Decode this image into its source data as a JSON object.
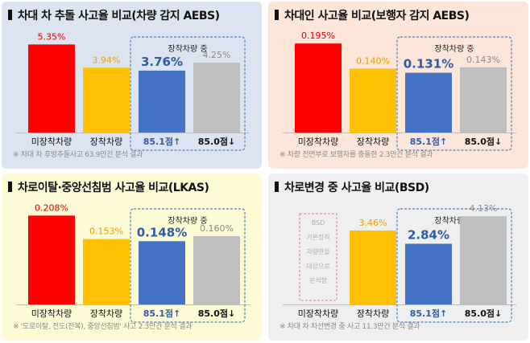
{
  "chart_data": [
    {
      "type": "bar",
      "title": "차대 차 추돌 사고율 비교(차량 감지 AEBS)",
      "categories": [
        "미장착차량",
        "장착차량",
        "85.1점↑",
        "85.0점↓"
      ],
      "values": [
        5.35,
        3.94,
        3.76,
        4.25
      ],
      "value_labels": [
        "5.35%",
        "3.94%",
        "3.76%",
        "4.25%"
      ],
      "group_box_label": "장착차량 중",
      "note": "※ 차대 차 후방추돌사고 63.9만건 분석 결과",
      "colors": [
        "#fe0000",
        "#fec000",
        "#4472c4",
        "#bfbfbf"
      ],
      "label_colors": [
        "#e00000",
        "#e8a000",
        "#2f5aa8",
        "#8a8a8a"
      ],
      "background": "#dde4f1",
      "ylim": [
        0,
        6.1
      ]
    },
    {
      "type": "bar",
      "title": "차대인 사고율 비교(보행자 감지 AEBS)",
      "categories": [
        "미장착차량",
        "장착차량",
        "85.1점↑",
        "85.0점↓"
      ],
      "values": [
        0.195,
        0.14,
        0.131,
        0.143
      ],
      "value_labels": [
        "0.195%",
        "0.140%",
        "0.131%",
        "0.143%"
      ],
      "group_box_label": "장착차량 중",
      "note": "※ 차량 전면부로 보행자를 충돌한 2.3만건 분석 결과",
      "colors": [
        "#fe0000",
        "#fec000",
        "#4472c4",
        "#bfbfbf"
      ],
      "label_colors": [
        "#e00000",
        "#e8a000",
        "#2f5aa8",
        "#8a8a8a"
      ],
      "background": "#fbe6d9",
      "ylim": [
        0,
        0.22
      ]
    },
    {
      "type": "bar",
      "title": "차로이탈·중앙선침범 사고율 비교(LKAS)",
      "categories": [
        "미장착차량",
        "장착차량",
        "85.1점↑",
        "85.0점↓"
      ],
      "values": [
        0.208,
        0.153,
        0.148,
        0.16
      ],
      "value_labels": [
        "0.208%",
        "0.153%",
        "0.148%",
        "0.160%"
      ],
      "group_box_label": "장착차량 중",
      "note": "※ '도로이탈, 전도(전복), 중앙선침범' 사고 2.3만건 분석 결과",
      "colors": [
        "#fe0000",
        "#fec000",
        "#4472c4",
        "#bfbfbf"
      ],
      "label_colors": [
        "#e00000",
        "#e8a000",
        "#2f5aa8",
        "#8a8a8a"
      ],
      "background": "#fdfbd5",
      "ylim": [
        0,
        0.235
      ]
    },
    {
      "type": "bar",
      "title": "차로변경 중 사고율 비교(BSD)",
      "categories": [
        "미장착차량",
        "장착차량",
        "85.1점↑",
        "85.0점↓"
      ],
      "values": [
        null,
        3.46,
        2.84,
        4.13
      ],
      "value_labels": [
        "",
        "3.46%",
        "2.84%",
        "4.13%"
      ],
      "placeholder_lines": [
        "BSD",
        "기본장착",
        "차량만을",
        "대상으로",
        "분석함"
      ],
      "group_box_label": "장착차량 중",
      "note": "※ 차대 차 차선변경 중 사고 11.3만건 분석 결과",
      "colors": [
        "#fe0000",
        "#fec000",
        "#4472c4",
        "#bfbfbf"
      ],
      "label_colors": [
        "#e00000",
        "#e8a000",
        "#2f5aa8",
        "#8a8a8a"
      ],
      "background": "#efefef",
      "ylim": [
        0,
        4.7
      ]
    }
  ]
}
